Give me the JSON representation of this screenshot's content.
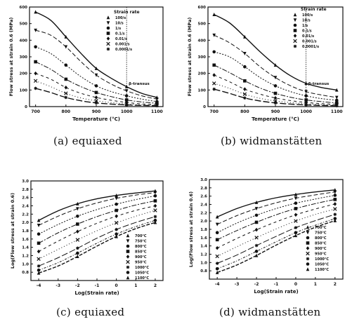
{
  "chart_data": [
    {
      "type": "line",
      "caption": "(a)  equiaxed",
      "xlabel": "Temperature (°C)",
      "ylabel": "Flow stress at strain 0.6 (MPa)",
      "xlim": [
        680,
        1120
      ],
      "ylim": [
        0,
        600
      ],
      "xticks": [
        "700",
        "800",
        "900",
        "1000",
        "1100"
      ],
      "yticks": [
        "0",
        "100",
        "200",
        "300",
        "400",
        "500",
        "600"
      ],
      "annotation": "β-transus",
      "transus_x": 1000,
      "legend_title": "Strain rate",
      "legend_position": "top-right",
      "legend": [
        "100/s",
        "10/s",
        "1/s",
        "0.1/s",
        "0.01/s",
        "0.001/s",
        "0.0001/s"
      ],
      "x": [
        700,
        750,
        800,
        850,
        900,
        950,
        1000,
        1050,
        1100
      ],
      "series": [
        {
          "values": [
            570,
            520,
            420,
            320,
            230,
            170,
            120,
            80,
            55
          ]
        },
        {
          "values": [
            460,
            430,
            360,
            270,
            190,
            135,
            95,
            65,
            45
          ]
        },
        {
          "values": [
            360,
            320,
            250,
            180,
            125,
            90,
            65,
            45,
            30
          ]
        },
        {
          "values": [
            270,
            225,
            165,
            120,
            85,
            60,
            40,
            28,
            20
          ]
        },
        {
          "values": [
            200,
            165,
            115,
            80,
            55,
            38,
            25,
            16,
            12
          ]
        },
        {
          "values": [
            155,
            120,
            80,
            52,
            35,
            24,
            16,
            10,
            8
          ]
        },
        {
          "values": [
            110,
            85,
            55,
            35,
            22,
            15,
            10,
            7,
            5
          ]
        }
      ]
    },
    {
      "type": "line",
      "caption": "(b)  widmanstätten",
      "xlabel": "Temperature (°C)",
      "ylabel": "Flow stress at strain 0.6 (MPa)",
      "xlim": [
        680,
        1120
      ],
      "ylim": [
        0,
        600
      ],
      "xticks": [
        "700",
        "800",
        "900",
        "1000",
        "1100"
      ],
      "yticks": [
        "0",
        "100",
        "200",
        "300",
        "400",
        "500",
        "600"
      ],
      "annotation": "β-transus",
      "transus_x": 1000,
      "legend_title": "Strain rate",
      "legend_position": "top-right",
      "legend": [
        "100/s",
        "10/s",
        "1/s",
        "0.1/s",
        "0.01/s",
        "0.001/s",
        "0.0001/s"
      ],
      "x": [
        700,
        750,
        800,
        850,
        900,
        950,
        1000,
        1050,
        1100
      ],
      "series": [
        {
          "values": [
            555,
            505,
            420,
            330,
            250,
            185,
            140,
            115,
            100
          ]
        },
        {
          "values": [
            430,
            385,
            320,
            240,
            175,
            125,
            90,
            70,
            55
          ]
        },
        {
          "values": [
            330,
            300,
            240,
            175,
            125,
            90,
            65,
            48,
            38
          ]
        },
        {
          "values": [
            250,
            205,
            155,
            112,
            80,
            56,
            40,
            30,
            22
          ]
        },
        {
          "values": [
            190,
            150,
            105,
            75,
            52,
            36,
            25,
            18,
            13
          ]
        },
        {
          "values": [
            140,
            110,
            75,
            50,
            34,
            24,
            17,
            12,
            9
          ]
        },
        {
          "values": [
            105,
            80,
            52,
            34,
            22,
            15,
            10,
            7,
            5
          ]
        }
      ]
    },
    {
      "type": "line",
      "caption": "(c)  equiaxed",
      "xlabel": "Log(Strain rate)",
      "ylabel": "Log(Flow stress at strain 0.6)",
      "xlim": [
        -4.4,
        2.4
      ],
      "ylim": [
        0.6,
        3.0
      ],
      "xticks": [
        "-4",
        "-3",
        "-2",
        "-1",
        "0",
        "1",
        "2"
      ],
      "yticks": [
        "",
        "0.8",
        "1.0",
        "1.2",
        "1.4",
        "1.6",
        "1.8",
        "2.0",
        "2.2",
        "2.4",
        "2.6",
        "2.8",
        "3.0"
      ],
      "legend_position": "right",
      "legend": [
        "700°C",
        "750°C",
        "800°C",
        "850°C",
        "900°C",
        "950°C",
        "1000°C",
        "1050°C",
        "1100°C"
      ],
      "x": [
        -4,
        -3,
        -2,
        -1,
        0,
        1,
        2
      ],
      "series": [
        {
          "values": [
            2.05,
            2.28,
            2.45,
            2.57,
            2.65,
            2.71,
            2.76
          ]
        },
        {
          "values": [
            1.93,
            2.15,
            2.33,
            2.47,
            2.58,
            2.66,
            2.72
          ]
        },
        {
          "values": [
            1.72,
            1.95,
            2.15,
            2.31,
            2.44,
            2.55,
            2.64
          ]
        },
        {
          "values": [
            1.5,
            1.75,
            1.96,
            2.14,
            2.29,
            2.42,
            2.52
          ]
        },
        {
          "values": [
            1.3,
            1.55,
            1.78,
            1.98,
            2.15,
            2.29,
            2.4
          ]
        },
        {
          "values": [
            1.12,
            1.35,
            1.58,
            1.8,
            1.99,
            2.15,
            2.29
          ]
        },
        {
          "values": [
            0.95,
            1.15,
            1.38,
            1.62,
            1.83,
            2.0,
            2.14
          ]
        },
        {
          "values": [
            0.85,
            1.03,
            1.26,
            1.5,
            1.72,
            1.9,
            2.05
          ]
        },
        {
          "values": [
            0.78,
            0.95,
            1.18,
            1.43,
            1.66,
            1.85,
            2.0
          ]
        }
      ]
    },
    {
      "type": "line",
      "caption": "(d)  widmanstätten",
      "xlabel": "Log(Strain rate)",
      "ylabel": "Log(Flow stress at strain 0.6)",
      "xlim": [
        -4.4,
        2.4
      ],
      "ylim": [
        0.6,
        3.0
      ],
      "xticks": [
        "-4",
        "-3",
        "-2",
        "-1",
        "0",
        "1",
        "2"
      ],
      "yticks": [
        "",
        "0.8",
        "1.0",
        "1.2",
        "1.4",
        "1.6",
        "1.8",
        "2.0",
        "2.2",
        "2.4",
        "2.6",
        "2.8",
        "3.0"
      ],
      "legend_position": "right",
      "legend": [
        "700°C",
        "750°C",
        "800°C",
        "850°C",
        "900°C",
        "950°C",
        "1000°C",
        "1050°C",
        "1100°C"
      ],
      "x": [
        -4,
        -3,
        -2,
        -1,
        0,
        1,
        2
      ],
      "series": [
        {
          "values": [
            2.1,
            2.3,
            2.45,
            2.56,
            2.64,
            2.7,
            2.75
          ]
        },
        {
          "values": [
            1.92,
            2.13,
            2.3,
            2.44,
            2.55,
            2.63,
            2.7
          ]
        },
        {
          "values": [
            1.72,
            1.95,
            2.14,
            2.3,
            2.43,
            2.53,
            2.62
          ]
        },
        {
          "values": [
            1.55,
            1.77,
            1.97,
            2.15,
            2.3,
            2.42,
            2.52
          ]
        },
        {
          "values": [
            1.35,
            1.58,
            1.79,
            1.98,
            2.15,
            2.29,
            2.41
          ]
        },
        {
          "values": [
            1.15,
            1.38,
            1.6,
            1.81,
            2.0,
            2.16,
            2.29
          ]
        },
        {
          "values": [
            0.98,
            1.18,
            1.41,
            1.63,
            1.84,
            2.01,
            2.16
          ]
        },
        {
          "values": [
            0.85,
            1.04,
            1.27,
            1.5,
            1.72,
            1.9,
            2.06
          ]
        },
        {
          "values": [
            0.76,
            0.94,
            1.17,
            1.42,
            1.65,
            1.85,
            2.01
          ]
        }
      ]
    }
  ]
}
